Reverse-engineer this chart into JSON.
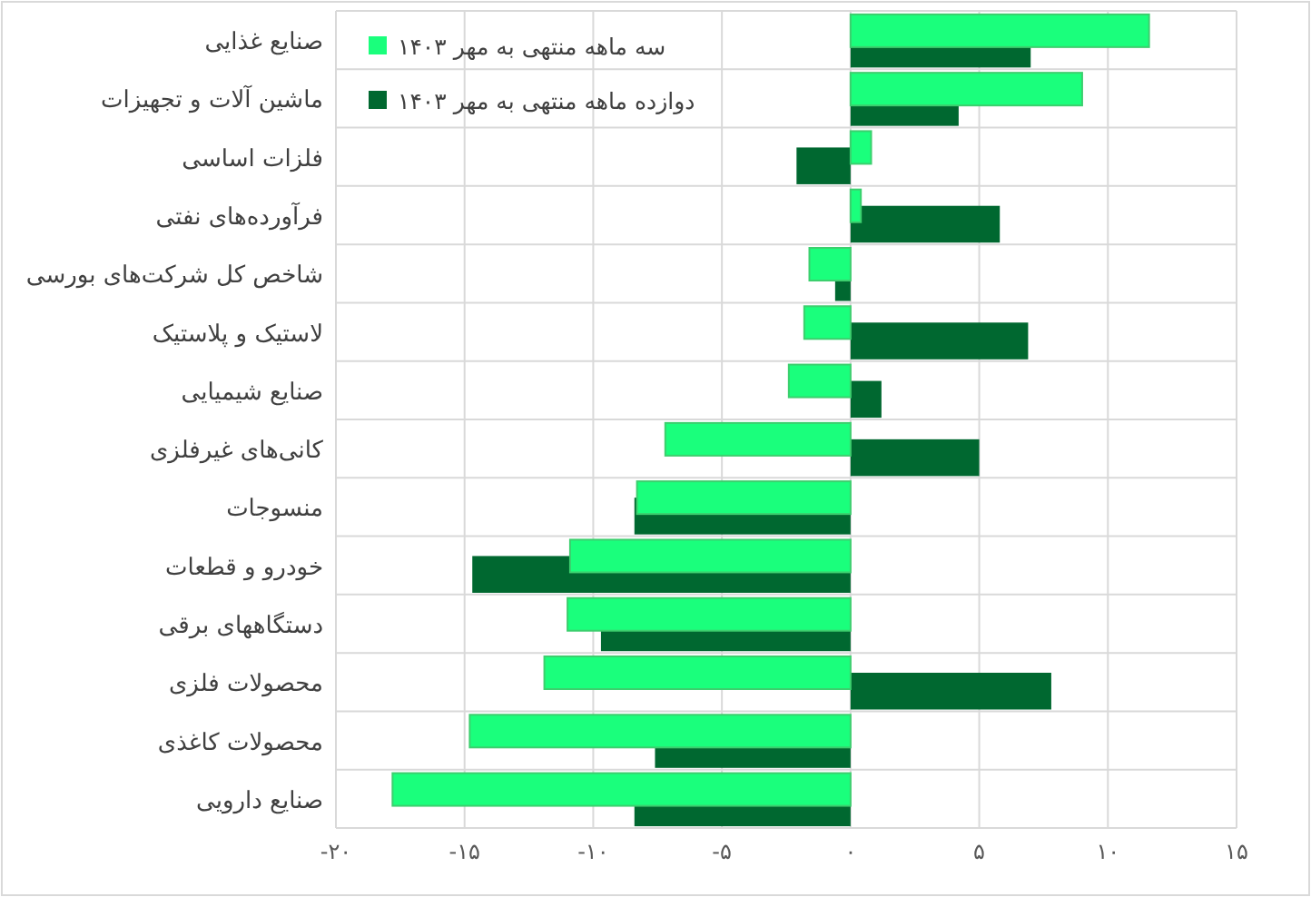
{
  "chart_data": {
    "type": "bar",
    "orientation": "horizontal",
    "categories": [
      "صنایع غذایی",
      "ماشین آلات و تجهیزات",
      "فلزات اساسی",
      "فرآورده‌های نفتی",
      "شاخص کل شرکت‌های بورسی",
      "لاستیک و پلاستیک",
      "صنایع شیمیایی",
      "کانی‌های غیرفلزی",
      "منسوجات",
      "خودرو و قطعات",
      "دستگاههای برقی",
      "محصولات فلزی",
      "محصولات کاغذی",
      "صنایع دارویی"
    ],
    "series": [
      {
        "name": "سه ماهه منتهی به مهر ۱۴۰۳",
        "color": "#1aff7c",
        "values": [
          11.6,
          9.0,
          0.8,
          0.4,
          -1.6,
          -1.8,
          -2.4,
          -7.2,
          -8.3,
          -10.9,
          -11.0,
          -11.9,
          -14.8,
          -17.8
        ]
      },
      {
        "name": "دوازده ماهه منتهی به مهر ۱۴۰۳",
        "color": "#006830",
        "values": [
          7.0,
          4.2,
          -2.1,
          5.8,
          -0.6,
          6.9,
          1.2,
          5.0,
          -8.4,
          -14.7,
          -9.7,
          7.8,
          -7.6,
          -8.4
        ]
      }
    ],
    "xlim": [
      -20,
      15
    ],
    "xticks": [
      {
        "value": -20,
        "label": "-۲۰"
      },
      {
        "value": -15,
        "label": "-۱۵"
      },
      {
        "value": -10,
        "label": "-۱۰"
      },
      {
        "value": -5,
        "label": "-۵"
      },
      {
        "value": 0,
        "label": "۰"
      },
      {
        "value": 5,
        "label": "۵"
      },
      {
        "value": 10,
        "label": "۱۰"
      },
      {
        "value": 15,
        "label": "۱۵"
      }
    ],
    "grid": true,
    "legend": "top left"
  }
}
